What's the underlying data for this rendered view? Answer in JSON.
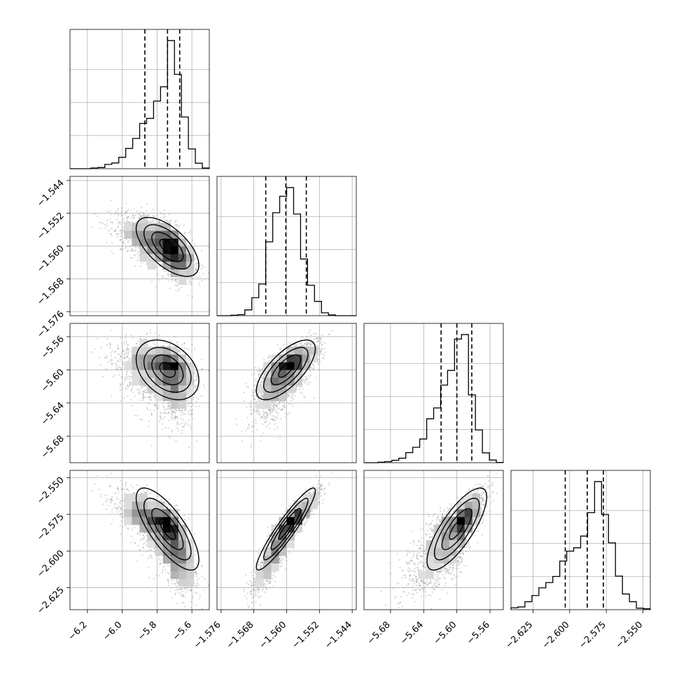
{
  "chart_data": {
    "type": "corner",
    "grid": true,
    "quantile_style": "dashed",
    "colors": {
      "hist": "#000000",
      "points": "#8c8c8c",
      "contour": "#000000",
      "grid": "#b0b0b0"
    },
    "params": [
      {
        "range": [
          -6.3,
          -5.5
        ],
        "ticks": [
          "-6.2",
          "-6.0",
          "-5.8",
          "-5.6"
        ],
        "tick_values": [
          -6.2,
          -6.0,
          -5.8,
          -5.6
        ],
        "mean": -5.74,
        "sd": 0.09,
        "skew": "left",
        "quantiles": [
          -5.87,
          -5.74,
          -5.67
        ]
      },
      {
        "range": [
          -1.577,
          -1.543
        ],
        "ticks": [
          "-1.576",
          "-1.568",
          "-1.560",
          "-1.552",
          "-1.544"
        ],
        "tick_values": [
          -1.576,
          -1.568,
          -1.56,
          -1.552,
          -1.544
        ],
        "mean": -1.5602,
        "sd": 0.0036,
        "skew": "none",
        "quantiles": [
          -1.5651,
          -1.5602,
          -1.5552
        ]
      },
      {
        "range": [
          -5.712,
          -5.544
        ],
        "ticks": [
          "-5.68",
          "-5.64",
          "-5.60",
          "-5.56"
        ],
        "tick_values": [
          -5.68,
          -5.64,
          -5.6,
          -5.56
        ],
        "mean": -5.6,
        "sd": 0.018,
        "skew": "left",
        "quantiles": [
          -5.619,
          -5.6,
          -5.582
        ]
      },
      {
        "range": [
          -2.64,
          -2.545
        ],
        "ticks": [
          "-2.625",
          "-2.600",
          "-2.575",
          "-2.550"
        ],
        "tick_values": [
          -2.625,
          -2.6,
          -2.575,
          -2.55
        ],
        "mean": -2.585,
        "sd": 0.014,
        "skew": "left",
        "quantiles": [
          -2.603,
          -2.588,
          -2.577
        ]
      }
    ],
    "correlations": [
      [
        1,
        -0.62,
        -0.35,
        -0.75
      ],
      [
        -0.62,
        1,
        0.7,
        0.93
      ],
      [
        -0.35,
        0.7,
        1,
        0.78
      ],
      [
        -0.75,
        0.93,
        0.78,
        1
      ]
    ]
  }
}
